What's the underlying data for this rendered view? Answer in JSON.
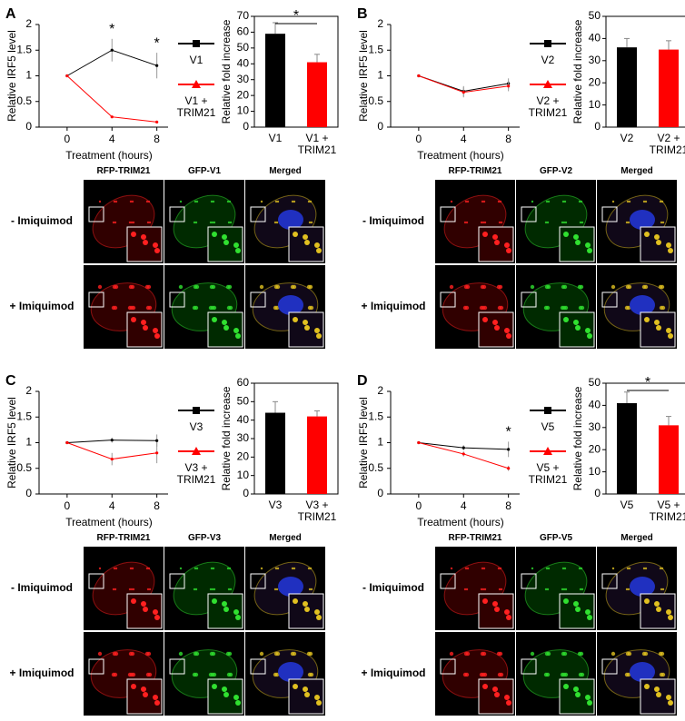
{
  "chart_data": [
    {
      "type": "line",
      "ylabel": "Relative IRF5 level",
      "xlabel": "Treatment (hours)",
      "x": [
        0,
        4,
        8
      ],
      "xlim": [
        -2.5,
        9
      ],
      "xticks": [
        0,
        4,
        8
      ],
      "ylim": [
        0,
        2
      ],
      "yticks": [
        0,
        0.5,
        1,
        1.5,
        2
      ],
      "series": [
        {
          "name": "V1",
          "color": "#000000",
          "marker": "square",
          "values": [
            1,
            1.5,
            1.2
          ],
          "errors": [
            0,
            0.22,
            0.25
          ]
        },
        {
          "name": "V1 + TRIM21",
          "color": "#ff0000",
          "marker": "triangle",
          "values": [
            1,
            0.2,
            0.1
          ],
          "errors": [
            0,
            0.02,
            0.02
          ]
        }
      ],
      "annotations": [
        {
          "text": "*",
          "x": 4
        },
        {
          "text": "*",
          "x": 8
        }
      ]
    },
    {
      "type": "bar",
      "ylabel": "Relative fold increase",
      "categories": [
        "V1",
        "V1 + TRIM21"
      ],
      "values": [
        59,
        41
      ],
      "errors": [
        7,
        5
      ],
      "colors": [
        "#000000",
        "#ff0000"
      ],
      "ylim": [
        0,
        70
      ],
      "yticks": [
        0,
        10,
        20,
        30,
        40,
        50,
        60,
        70
      ],
      "annotations": [
        {
          "text": "*"
        }
      ]
    },
    {
      "type": "line",
      "ylabel": "Relative IRF5 level",
      "xlabel": "Treatment (hours)",
      "x": [
        0,
        4,
        8
      ],
      "xlim": [
        -2.5,
        9
      ],
      "xticks": [
        0,
        4,
        8
      ],
      "ylim": [
        0,
        2
      ],
      "yticks": [
        0,
        0.5,
        1,
        1.5,
        2
      ],
      "series": [
        {
          "name": "V2",
          "color": "#000000",
          "marker": "square",
          "values": [
            1,
            0.7,
            0.85
          ],
          "errors": [
            0,
            0.1,
            0.1
          ]
        },
        {
          "name": "V2 + TRIM21",
          "color": "#ff0000",
          "marker": "triangle",
          "values": [
            1,
            0.68,
            0.8
          ],
          "errors": [
            0,
            0.1,
            0.1
          ]
        }
      ],
      "annotations": []
    },
    {
      "type": "bar",
      "ylabel": "Relative fold increase",
      "categories": [
        "V2",
        "V2 + TRIM21"
      ],
      "values": [
        36,
        35
      ],
      "errors": [
        4,
        4
      ],
      "colors": [
        "#000000",
        "#ff0000"
      ],
      "ylim": [
        0,
        50
      ],
      "yticks": [
        0,
        10,
        20,
        30,
        40,
        50
      ],
      "annotations": []
    },
    {
      "type": "line",
      "ylabel": "Relative IRF5 level",
      "xlabel": "Treatment (hours)",
      "x": [
        0,
        4,
        8
      ],
      "xlim": [
        -2.5,
        9
      ],
      "xticks": [
        0,
        4,
        8
      ],
      "ylim": [
        0,
        2
      ],
      "yticks": [
        0,
        0.5,
        1,
        1.5,
        2
      ],
      "series": [
        {
          "name": "V3",
          "color": "#000000",
          "marker": "square",
          "values": [
            1,
            1.05,
            1.04
          ],
          "errors": [
            0,
            0.05,
            0.12
          ]
        },
        {
          "name": "V3 + TRIM21",
          "color": "#ff0000",
          "marker": "triangle",
          "values": [
            1,
            0.68,
            0.8
          ],
          "errors": [
            0,
            0.12,
            0.2
          ]
        }
      ],
      "annotations": []
    },
    {
      "type": "bar",
      "ylabel": "Relative fold increase",
      "categories": [
        "V3",
        "V3 + TRIM21"
      ],
      "values": [
        44,
        42
      ],
      "errors": [
        6,
        3
      ],
      "colors": [
        "#000000",
        "#ff0000"
      ],
      "ylim": [
        0,
        60
      ],
      "yticks": [
        0,
        10,
        20,
        30,
        40,
        50,
        60
      ],
      "annotations": []
    },
    {
      "type": "line",
      "ylabel": "Relative IRF5 level",
      "xlabel": "Treatment (hours)",
      "x": [
        0,
        4,
        8
      ],
      "xlim": [
        -2.5,
        9
      ],
      "xticks": [
        0,
        4,
        8
      ],
      "ylim": [
        0,
        2
      ],
      "yticks": [
        0,
        0.5,
        1,
        1.5,
        2
      ],
      "series": [
        {
          "name": "V5",
          "color": "#000000",
          "marker": "square",
          "values": [
            1,
            0.9,
            0.87
          ],
          "errors": [
            0,
            0.05,
            0.15
          ]
        },
        {
          "name": "V5 + TRIM21",
          "color": "#ff0000",
          "marker": "triangle",
          "values": [
            1,
            0.78,
            0.5
          ],
          "errors": [
            0,
            0.05,
            0.05
          ]
        }
      ],
      "annotations": [
        {
          "text": "*",
          "x": 8
        }
      ]
    },
    {
      "type": "bar",
      "ylabel": "Relative fold increase",
      "categories": [
        "V5",
        "V5 + TRIM21"
      ],
      "values": [
        41,
        31
      ],
      "errors": [
        5,
        4
      ],
      "colors": [
        "#000000",
        "#ff0000"
      ],
      "ylim": [
        0,
        50
      ],
      "yticks": [
        0,
        10,
        20,
        30,
        40,
        50
      ],
      "annotations": [
        {
          "text": "*"
        }
      ]
    }
  ],
  "panels": [
    {
      "letter": "A",
      "channels": [
        "RFP-TRIM21",
        "GFP-V1",
        "Merged"
      ],
      "conditions": [
        "- Imiquimod",
        "+ Imiquimod"
      ]
    },
    {
      "letter": "B",
      "channels": [
        "RFP-TRIM21",
        "GFP-V2",
        "Merged"
      ],
      "conditions": [
        "- Imiquimod",
        "+ Imiquimod"
      ]
    },
    {
      "letter": "C",
      "channels": [
        "RFP-TRIM21",
        "GFP-V3",
        "Merged"
      ],
      "conditions": [
        "- Imiquimod",
        "+ Imiquimod"
      ]
    },
    {
      "letter": "D",
      "channels": [
        "RFP-TRIM21",
        "GFP-V5",
        "Merged"
      ],
      "conditions": [
        "- Imiquimod",
        "+ Imiquimod"
      ]
    }
  ]
}
